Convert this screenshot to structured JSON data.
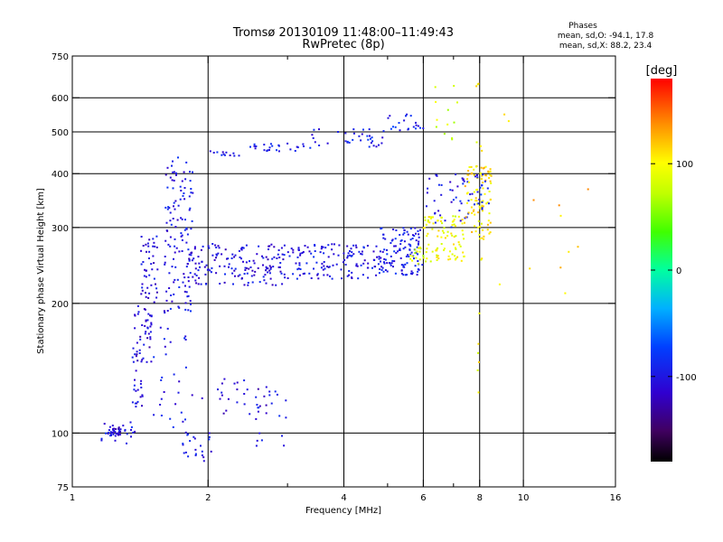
{
  "header": {
    "title_line1": "Tromsø 20130109 11:48:00–11:49:43",
    "title_line2": "RwPretec (8p)",
    "phases_title": "Phases",
    "phases_o": "mean, sd,O: -94.1, 17.8",
    "phases_x": "mean, sd,X: 88.2, 23.4"
  },
  "chart_data": {
    "type": "scatter",
    "xlabel": "Frequency [MHz]",
    "ylabel": "Stationary phase Virtual Height [km]",
    "x_scale": "log",
    "y_scale": "log",
    "xlim": [
      1,
      16
    ],
    "ylim": [
      75,
      750
    ],
    "xticks": [
      1,
      2,
      4,
      6,
      8,
      10,
      16
    ],
    "xtick_labels": [
      "1",
      "2",
      "4",
      "6",
      "8",
      "10",
      "16"
    ],
    "yticks": [
      75,
      100,
      200,
      300,
      400,
      500,
      600,
      750
    ],
    "ytick_labels": [
      "75",
      "100",
      "200",
      "300",
      "400",
      "500",
      "600",
      "750"
    ],
    "x_gridlines": [
      2,
      4,
      6,
      8,
      10
    ],
    "y_gridlines": [
      100,
      200,
      300,
      400,
      500,
      600
    ],
    "grid": true,
    "colorbar": {
      "label": "[deg]",
      "range": [
        -180,
        180
      ],
      "ticks": [
        100,
        0,
        -100
      ],
      "tick_labels": [
        "100",
        "0",
        "-100"
      ]
    },
    "clusters": [
      {
        "x": [
          1.2,
          1.28
        ],
        "y": [
          98,
          104
        ],
        "c": -110,
        "n": 28
      },
      {
        "x": [
          1.16,
          1.4
        ],
        "y": [
          93,
          106
        ],
        "c": -100,
        "n": 22
      },
      {
        "x": [
          1.35,
          1.45
        ],
        "y": [
          115,
          140
        ],
        "c": -105,
        "n": 18
      },
      {
        "x": [
          1.36,
          1.5
        ],
        "y": [
          145,
          200
        ],
        "c": -110,
        "n": 50
      },
      {
        "x": [
          1.42,
          1.55
        ],
        "y": [
          200,
          290
        ],
        "c": -105,
        "n": 45
      },
      {
        "x": [
          1.6,
          1.85
        ],
        "y": [
          190,
          440
        ],
        "c": -100,
        "n": 120
      },
      {
        "x": [
          1.8,
          3.0
        ],
        "y": [
          220,
          275
        ],
        "c": -105,
        "n": 160
      },
      {
        "x": [
          3.0,
          4.8
        ],
        "y": [
          228,
          275
        ],
        "c": -100,
        "n": 130
      },
      {
        "x": [
          4.8,
          6.0
        ],
        "y": [
          232,
          300
        ],
        "c": -95,
        "n": 120
      },
      {
        "x": [
          5.6,
          6.0
        ],
        "y": [
          245,
          270
        ],
        "c": 80,
        "n": 15
      },
      {
        "x": [
          6.0,
          7.4
        ],
        "y": [
          250,
          320
        ],
        "c": 95,
        "n": 90
      },
      {
        "x": [
          6.0,
          7.6
        ],
        "y": [
          300,
          400
        ],
        "c": -100,
        "n": 40
      },
      {
        "x": [
          7.4,
          8.5
        ],
        "y": [
          280,
          420
        ],
        "c": 110,
        "n": 90
      },
      {
        "x": [
          7.6,
          8.4
        ],
        "y": [
          330,
          400
        ],
        "c": -90,
        "n": 20
      },
      {
        "x": [
          2.0,
          2.4
        ],
        "y": [
          440,
          455
        ],
        "c": -100,
        "n": 12
      },
      {
        "x": [
          2.4,
          3.4
        ],
        "y": [
          450,
          470
        ],
        "c": -95,
        "n": 25
      },
      {
        "x": [
          3.4,
          5.0
        ],
        "y": [
          460,
          510
        ],
        "c": -95,
        "n": 35
      },
      {
        "x": [
          5.0,
          6.0
        ],
        "y": [
          500,
          550
        ],
        "c": -90,
        "n": 20
      },
      {
        "x": [
          1.5,
          2.0
        ],
        "y": [
          100,
          180
        ],
        "c": -100,
        "n": 30
      },
      {
        "x": [
          1.75,
          2.05
        ],
        "y": [
          85,
          100
        ],
        "c": -100,
        "n": 22
      },
      {
        "x": [
          2.1,
          2.8
        ],
        "y": [
          110,
          135
        ],
        "c": -110,
        "n": 30
      },
      {
        "x": [
          2.5,
          3.0
        ],
        "y": [
          88,
          140
        ],
        "c": -100,
        "n": 14
      },
      {
        "x": [
          6.3,
          7.2
        ],
        "y": [
          480,
          640
        ],
        "c": 80,
        "n": 12
      },
      {
        "x": [
          7.8,
          8.1
        ],
        "y": [
          90,
          650
        ],
        "c": 100,
        "n": 18
      },
      {
        "x": [
          8.5,
          14.5
        ],
        "y": [
          180,
          600
        ],
        "c": 120,
        "n": 12
      }
    ]
  }
}
